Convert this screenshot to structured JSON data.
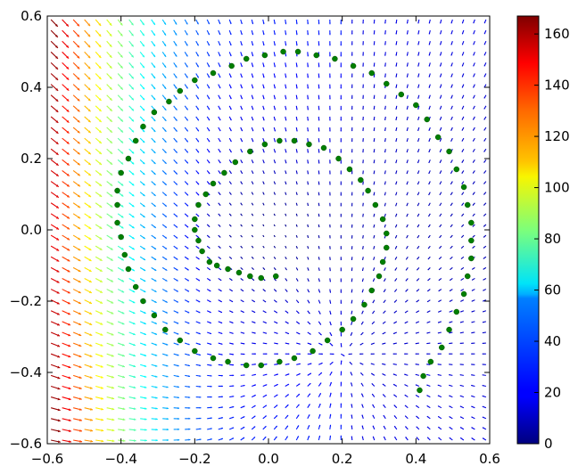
{
  "chart_data": {
    "type": "scatter",
    "title": "",
    "xlabel": "",
    "ylabel": "",
    "xlim": [
      -0.6,
      0.6
    ],
    "ylim": [
      -0.6,
      0.6
    ],
    "x_ticks": [
      "−0.6",
      "−0.4",
      "−0.2",
      "0.0",
      "0.2",
      "0.4",
      "0.6"
    ],
    "y_ticks": [
      "−0.6",
      "−0.4",
      "−0.2",
      "0.0",
      "0.2",
      "0.4",
      "0.6"
    ],
    "x_tick_values": [
      -0.6,
      -0.4,
      -0.2,
      0.0,
      0.2,
      0.4,
      0.6
    ],
    "y_tick_values": [
      -0.6,
      -0.4,
      -0.2,
      0.0,
      0.2,
      0.4,
      0.6
    ],
    "grid": false,
    "colorbar": {
      "colormap": "jet",
      "range": [
        0,
        167
      ],
      "ticks": [
        "0",
        "20",
        "40",
        "60",
        "80",
        "100",
        "120",
        "140",
        "160"
      ],
      "tick_values": [
        0,
        20,
        40,
        60,
        80,
        100,
        120,
        140,
        160
      ]
    },
    "quiver_field": {
      "x_range": [
        -0.59,
        0.59
      ],
      "y_range": [
        -0.59,
        0.59
      ],
      "grid_count": 40,
      "direction": "flow toward the origin (arrows point right/down on the left side, toward center elsewhere)",
      "magnitude_max": 167,
      "magnitude_at_left_edge": 160,
      "magnitude_near_center": 0
    },
    "series": [
      {
        "color": "#007f00",
        "marker": "filled-circle",
        "shape": "spiral (two turns, outer radius ≈ 0.47, inner radius ≈ 0.09, inner end near (0.02, -0.13))",
        "points": [
          [
            0.02,
            -0.13
          ],
          [
            -0.02,
            -0.135
          ],
          [
            -0.05,
            -0.13
          ],
          [
            -0.08,
            -0.12
          ],
          [
            -0.11,
            -0.11
          ],
          [
            -0.14,
            -0.1
          ],
          [
            -0.16,
            -0.09
          ],
          [
            -0.18,
            -0.06
          ],
          [
            -0.19,
            -0.03
          ],
          [
            -0.2,
            0.0
          ],
          [
            -0.2,
            0.03
          ],
          [
            -0.19,
            0.07
          ],
          [
            -0.17,
            0.1
          ],
          [
            -0.15,
            0.13
          ],
          [
            -0.12,
            0.16
          ],
          [
            -0.09,
            0.19
          ],
          [
            -0.05,
            0.22
          ],
          [
            -0.01,
            0.24
          ],
          [
            0.03,
            0.25
          ],
          [
            0.07,
            0.25
          ],
          [
            0.11,
            0.24
          ],
          [
            0.15,
            0.23
          ],
          [
            0.19,
            0.2
          ],
          [
            0.22,
            0.17
          ],
          [
            0.25,
            0.14
          ],
          [
            0.27,
            0.11
          ],
          [
            0.29,
            0.07
          ],
          [
            0.31,
            0.03
          ],
          [
            0.32,
            -0.01
          ],
          [
            0.32,
            -0.05
          ],
          [
            0.31,
            -0.09
          ],
          [
            0.3,
            -0.13
          ],
          [
            0.28,
            -0.17
          ],
          [
            0.26,
            -0.21
          ],
          [
            0.23,
            -0.25
          ],
          [
            0.2,
            -0.28
          ],
          [
            0.16,
            -0.31
          ],
          [
            0.12,
            -0.34
          ],
          [
            0.07,
            -0.36
          ],
          [
            0.03,
            -0.37
          ],
          [
            -0.02,
            -0.38
          ],
          [
            -0.06,
            -0.38
          ],
          [
            -0.11,
            -0.37
          ],
          [
            -0.15,
            -0.36
          ],
          [
            -0.2,
            -0.34
          ],
          [
            -0.24,
            -0.31
          ],
          [
            -0.28,
            -0.28
          ],
          [
            -0.31,
            -0.24
          ],
          [
            -0.34,
            -0.2
          ],
          [
            -0.36,
            -0.16
          ],
          [
            -0.38,
            -0.11
          ],
          [
            -0.39,
            -0.07
          ],
          [
            -0.4,
            -0.02
          ],
          [
            -0.41,
            0.02
          ],
          [
            -0.41,
            0.07
          ],
          [
            -0.41,
            0.11
          ],
          [
            -0.4,
            0.16
          ],
          [
            -0.38,
            0.2
          ],
          [
            -0.36,
            0.25
          ],
          [
            -0.34,
            0.29
          ],
          [
            -0.31,
            0.33
          ],
          [
            -0.27,
            0.36
          ],
          [
            -0.24,
            0.39
          ],
          [
            -0.2,
            0.42
          ],
          [
            -0.15,
            0.44
          ],
          [
            -0.1,
            0.46
          ],
          [
            -0.06,
            0.48
          ],
          [
            -0.01,
            0.49
          ],
          [
            0.04,
            0.5
          ],
          [
            0.08,
            0.5
          ],
          [
            0.13,
            0.49
          ],
          [
            0.18,
            0.48
          ],
          [
            0.23,
            0.46
          ],
          [
            0.28,
            0.44
          ],
          [
            0.32,
            0.41
          ],
          [
            0.36,
            0.38
          ],
          [
            0.4,
            0.35
          ],
          [
            0.43,
            0.31
          ],
          [
            0.46,
            0.26
          ],
          [
            0.49,
            0.22
          ],
          [
            0.51,
            0.17
          ],
          [
            0.53,
            0.12
          ],
          [
            0.54,
            0.07
          ],
          [
            0.55,
            0.02
          ],
          [
            0.55,
            -0.03
          ],
          [
            0.55,
            -0.08
          ],
          [
            0.54,
            -0.13
          ],
          [
            0.53,
            -0.18
          ],
          [
            0.51,
            -0.23
          ],
          [
            0.49,
            -0.28
          ],
          [
            0.47,
            -0.33
          ],
          [
            0.44,
            -0.37
          ],
          [
            0.42,
            -0.41
          ],
          [
            0.41,
            -0.45
          ]
        ]
      }
    ]
  }
}
